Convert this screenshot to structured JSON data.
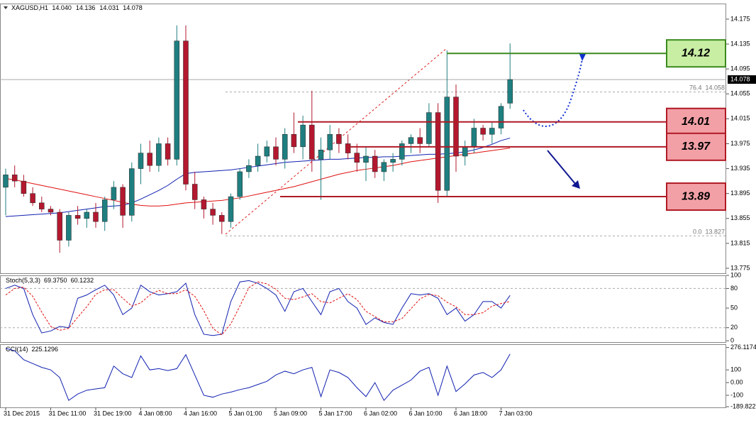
{
  "chart_data": [
    {
      "type": "candlestick",
      "header": {
        "symbol": "XAGUSD,H1",
        "ohlc": [
          {
            "value": 14.04,
            "label": "14.040"
          },
          14.136,
          14.031,
          14.078
        ]
      },
      "categories": [
        "31 Dec 2015",
        null,
        null,
        null,
        null,
        "31 Dec 11:00",
        null,
        null,
        null,
        null,
        "31 Dec 19:00",
        null,
        null,
        null,
        null,
        "4 Jan 08:00",
        null,
        null,
        null,
        null,
        "4 Jan 16:00",
        null,
        null,
        null,
        null,
        "5 Jan 01:00",
        null,
        null,
        null,
        null,
        "5 Jan 09:00",
        null,
        null,
        null,
        null,
        "5 Jan 17:00",
        null,
        null,
        null,
        null,
        "6 Jan 02:00",
        null,
        null,
        null,
        null,
        "6 Jan 10:00",
        null,
        null,
        null,
        null,
        "6 Jan 18:00",
        null,
        null,
        null,
        null,
        "7 Jan 03:00",
        null
      ],
      "open": [
        13.905,
        13.925,
        13.915,
        13.895,
        13.88,
        13.87,
        13.865,
        13.82,
        13.86,
        13.855,
        13.865,
        13.85,
        13.885,
        13.905,
        13.86,
        13.935,
        13.96,
        13.94,
        13.975,
        13.95,
        14.14,
        13.91,
        13.885,
        13.87,
        13.86,
        13.85,
        13.89,
        13.93,
        13.94,
        13.955,
        13.97,
        13.95,
        13.99,
        13.97,
        14.005,
        13.95,
        13.965,
        13.99,
        13.975,
        13.96,
        13.945,
        13.955,
        13.93,
        13.945,
        13.95,
        13.975,
        13.985,
        13.975,
        14.025,
        13.9,
        14.05,
        13.955,
        13.97,
        14.0,
        13.99,
        14.0,
        14.04
      ],
      "high": [
        13.935,
        13.94,
        13.925,
        13.905,
        13.89,
        13.875,
        13.87,
        13.865,
        13.875,
        13.87,
        13.88,
        13.89,
        13.915,
        13.91,
        13.945,
        13.975,
        13.98,
        13.985,
        13.985,
        14.165,
        14.165,
        13.93,
        13.89,
        13.88,
        13.865,
        13.895,
        13.935,
        13.95,
        13.975,
        13.98,
        13.985,
        14.0,
        14.025,
        14.02,
        14.06,
        13.985,
        14.005,
        14.0,
        13.99,
        13.975,
        13.97,
        13.965,
        13.95,
        13.96,
        13.98,
        13.99,
        14.0,
        14.04,
        14.04,
        14.125,
        14.07,
        13.98,
        14.015,
        14.005,
        14.01,
        14.04,
        14.136
      ],
      "low": [
        13.86,
        13.905,
        13.89,
        13.875,
        13.865,
        13.86,
        13.8,
        13.81,
        13.845,
        13.84,
        13.84,
        13.835,
        13.87,
        13.84,
        13.85,
        13.91,
        13.93,
        13.93,
        13.94,
        13.94,
        13.9,
        13.87,
        13.855,
        13.845,
        13.83,
        13.84,
        13.885,
        13.92,
        13.93,
        13.945,
        13.94,
        13.935,
        13.96,
        13.95,
        13.93,
        13.885,
        13.95,
        13.96,
        13.95,
        13.93,
        13.915,
        13.92,
        13.915,
        13.93,
        13.94,
        13.96,
        13.96,
        13.97,
        13.88,
        13.89,
        13.93,
        13.94,
        13.96,
        13.98,
        13.975,
        13.99,
        14.031
      ],
      "close": [
        13.925,
        13.915,
        13.895,
        13.88,
        13.87,
        13.865,
        13.82,
        13.86,
        13.855,
        13.865,
        13.85,
        13.885,
        13.905,
        13.86,
        13.935,
        13.96,
        13.94,
        13.975,
        13.95,
        14.14,
        13.91,
        13.885,
        13.87,
        13.86,
        13.85,
        13.89,
        13.93,
        13.94,
        13.955,
        13.97,
        13.95,
        13.99,
        13.97,
        14.005,
        13.95,
        13.965,
        13.99,
        13.975,
        13.96,
        13.945,
        13.955,
        13.93,
        13.945,
        13.95,
        13.975,
        13.985,
        13.975,
        14.025,
        13.9,
        14.05,
        13.955,
        13.97,
        14.0,
        13.99,
        14.0,
        14.035,
        14.078
      ],
      "up_color": "#1f7f80",
      "down_color": "#b3182f",
      "overlays": [
        {
          "color": "#e01010",
          "values": [
            13.919,
            13.917,
            13.914,
            13.911,
            13.908,
            13.905,
            13.902,
            13.899,
            13.896,
            13.893,
            13.89,
            13.887,
            13.884,
            13.881,
            13.878,
            13.876,
            13.875,
            13.875,
            13.876,
            13.878,
            13.88,
            13.881,
            13.882,
            13.883,
            13.884,
            13.886,
            13.888,
            13.891,
            13.894,
            13.897,
            13.9,
            13.903,
            13.906,
            13.91,
            13.914,
            13.918,
            13.922,
            13.926,
            13.929,
            13.932,
            13.934,
            13.936,
            13.938,
            13.94,
            13.943,
            13.946,
            13.948,
            13.95,
            13.952,
            13.954,
            13.956,
            13.958,
            13.96,
            13.962,
            13.964,
            13.966,
            13.968
          ]
        },
        {
          "color": "#1020b0",
          "values": [
            13.858,
            13.859,
            13.86,
            13.861,
            13.862,
            13.863,
            13.864,
            13.866,
            13.868,
            13.87,
            13.872,
            13.874,
            13.875,
            13.876,
            13.88,
            13.886,
            13.893,
            13.9,
            13.908,
            13.918,
            13.927,
            13.929,
            13.93,
            13.931,
            13.932,
            13.933,
            13.935,
            13.937,
            13.939,
            13.941,
            13.943,
            13.945,
            13.946,
            13.947,
            13.948,
            13.949,
            13.95,
            13.95,
            13.951,
            13.952,
            13.953,
            13.953,
            13.954,
            13.954,
            13.955,
            13.956,
            13.957,
            13.958,
            13.958,
            13.959,
            13.96,
            13.962,
            13.965,
            13.969,
            13.974,
            13.98,
            13.984
          ]
        }
      ],
      "ylim": [
        13.767,
        14.2
      ],
      "yticks": [
        13.775,
        13.815,
        13.855,
        13.895,
        13.935,
        13.975,
        14.015,
        14.055,
        14.095,
        14.135,
        14.175
      ],
      "last_price": 14.078,
      "levels": [
        {
          "value": 14.12,
          "color": "#3b8a1e",
          "fill": "#c8eea4"
        },
        {
          "value": 14.01,
          "color": "#b01a25",
          "fill": "#f2a0a6"
        },
        {
          "value": 13.97,
          "color": "#b01a25",
          "fill": "#f2a0a6"
        },
        {
          "value": 13.89,
          "color": "#b01a25",
          "fill": "#f2a0a6"
        }
      ],
      "fib": [
        {
          "ratio": 76.4,
          "price": 14.058
        },
        {
          "ratio": {
            "value": 0,
            "label": "0.0"
          },
          "price": 13.827
        }
      ]
    },
    {
      "type": "line",
      "title": "Stoch(5,3,3)",
      "readout": [
        {
          "value": 69.375,
          "label": "69.3750"
        },
        60.1232
      ],
      "series": [
        {
          "color": "#1020b0",
          "dash": false,
          "values": [
            80,
            85,
            80,
            40,
            12,
            15,
            22,
            20,
            65,
            70,
            78,
            85,
            70,
            40,
            50,
            85,
            75,
            70,
            72,
            75,
            88,
            40,
            10,
            8,
            10,
            60,
            90,
            92,
            88,
            80,
            70,
            45,
            75,
            80,
            60,
            40,
            75,
            80,
            60,
            50,
            25,
            35,
            28,
            25,
            50,
            72,
            70,
            72,
            65,
            40,
            50,
            30,
            40,
            60,
            60,
            50,
            69.375
          ]
        },
        {
          "color": "#e01010",
          "dash": true,
          "values": [
            70,
            80,
            82,
            68,
            44,
            22,
            16,
            19,
            36,
            52,
            71,
            78,
            78,
            65,
            53,
            58,
            70,
            77,
            72,
            72,
            78,
            68,
            46,
            19,
            9,
            26,
            53,
            81,
            90,
            87,
            79,
            65,
            63,
            67,
            72,
            60,
            58,
            65,
            72,
            63,
            45,
            37,
            29,
            29,
            34,
            49,
            64,
            71,
            69,
            59,
            52,
            40,
            40,
            43,
            53,
            57,
            60.1232
          ]
        }
      ],
      "ylim": [
        -2,
        100
      ],
      "yticks": [
        0,
        20,
        50,
        80,
        100
      ],
      "guides": [
        20,
        80
      ]
    },
    {
      "type": "line",
      "title": "CCI(14)",
      "readout": [
        225.1296
      ],
      "series": [
        {
          "color": "#1020b0",
          "dash": false,
          "values": [
            270,
            250,
            180,
            150,
            120,
            100,
            40,
            -140,
            -90,
            -60,
            -50,
            -40,
            130,
            70,
            40,
            210,
            100,
            110,
            95,
            110,
            220,
            60,
            -100,
            -115,
            -90,
            -75,
            -55,
            -40,
            -15,
            10,
            60,
            90,
            70,
            100,
            120,
            -110,
            100,
            80,
            40,
            -40,
            -110,
            0,
            -140,
            -60,
            -20,
            20,
            90,
            120,
            -100,
            130,
            -70,
            -10,
            60,
            80,
            40,
            100,
            225.1296
          ]
        }
      ],
      "ylim": [
        -195,
        302
      ],
      "yticks": [
        -189.822,
        -100,
        {
          "value": 0,
          "label": "0.00"
        },
        100,
        276.1174
      ],
      "guides": []
    }
  ]
}
